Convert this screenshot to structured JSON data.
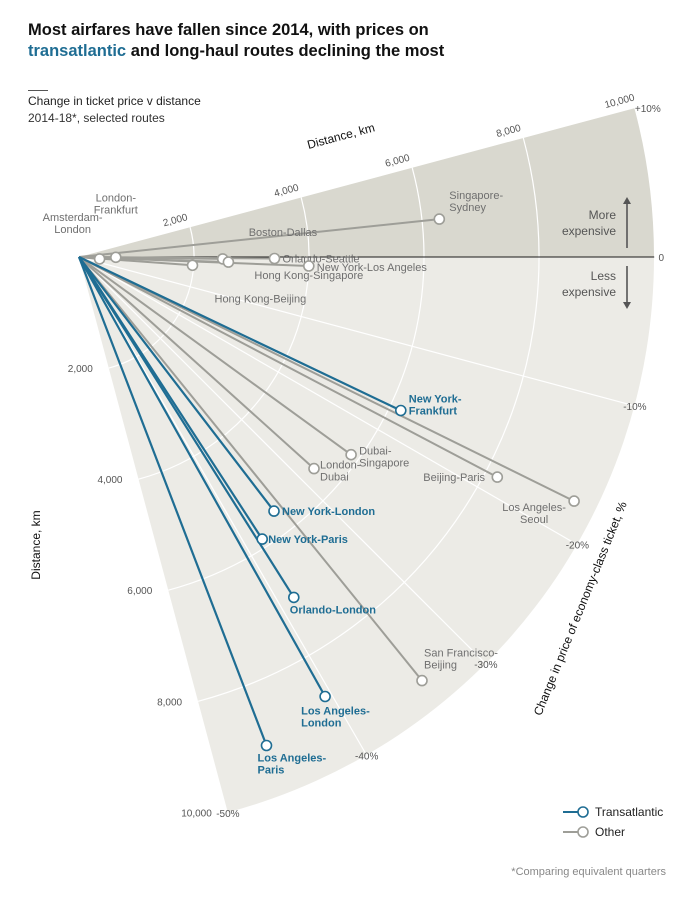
{
  "title": {
    "line1": "Most airfares have fallen since 2014, with prices on",
    "highlight": "transatlantic",
    "line2_rest": " and long-haul routes declining the most"
  },
  "subtitle": {
    "line1": "Change in ticket price v distance",
    "line2": "2014-18*, selected routes"
  },
  "footnote": "*Comparing equivalent quarters",
  "colors": {
    "transatlantic": "#1f6d93",
    "other": "#9e9e98",
    "above_fill": "#d9d8cf",
    "below_fill": "#ecebe6",
    "grid": "#ffffff",
    "zero_line": "#1a1a1a"
  },
  "directions": {
    "up": [
      "More",
      "expensive"
    ],
    "down": [
      "Less",
      "expensive"
    ]
  },
  "chart_data": {
    "type": "scatter",
    "subtype": "radial",
    "xlabel": "Distance, km",
    "ylabel": "Distance, km",
    "angle_label": "Change in price of economy-class ticket, %",
    "radius_range": [
      0,
      10000
    ],
    "radius_ticks": [
      2000,
      4000,
      6000,
      8000,
      10000
    ],
    "radius_tick_labels": [
      "2,000",
      "4,000",
      "6,000",
      "8,000",
      "10,000"
    ],
    "angle_range": [
      -50,
      10
    ],
    "angle_ticks": [
      10,
      0,
      -10,
      -20,
      -30,
      -40,
      -50
    ],
    "angle_tick_labels": [
      "+10%",
      "0",
      "-10%",
      "-20%",
      "-30%",
      "-40%",
      "-50%"
    ],
    "legend": [
      {
        "name": "Transatlantic",
        "color": "#1f6d93"
      },
      {
        "name": "Other",
        "color": "#9e9e98"
      }
    ],
    "legend_position": "bottom-right",
    "series": [
      {
        "name": "Transatlantic",
        "points": [
          {
            "route": "New York-Frankfurt",
            "label": [
              "New York-",
              "Frankfurt"
            ],
            "distance": 6200,
            "change": -17
          },
          {
            "route": "New York-London",
            "label": [
              "New York-London"
            ],
            "distance": 5570,
            "change": -35
          },
          {
            "route": "New York-Paris",
            "label": [
              "New York-Paris"
            ],
            "distance": 5850,
            "change": -38
          },
          {
            "route": "Orlando-London",
            "label": [
              "Orlando-London"
            ],
            "distance": 7000,
            "change": -38.5
          },
          {
            "route": "Los Angeles-London",
            "label": [
              "Los Angeles-",
              "London"
            ],
            "distance": 8760,
            "change": -40.5
          },
          {
            "route": "Los Angeles-Paris",
            "label": [
              "Los Angeles-",
              "Paris"
            ],
            "distance": 9100,
            "change": -46
          }
        ]
      },
      {
        "name": "Other",
        "points": [
          {
            "route": "Singapore-Sydney",
            "label": [
              "Singapore-",
              "Sydney"
            ],
            "distance": 6300,
            "change": 4
          },
          {
            "route": "Boston-Dallas",
            "label": [
              "Boston-Dallas"
            ],
            "distance": 2500,
            "change": -0.5
          },
          {
            "route": "Orlando-Seattle",
            "label": [
              "Orlando-Seattle"
            ],
            "distance": 3400,
            "change": -0.3
          },
          {
            "route": "New York-Los Angeles",
            "label": [
              "New York-Los Angeles"
            ],
            "distance": 4000,
            "change": -1.5
          },
          {
            "route": "Hong Kong-Singapore",
            "label": [
              "Hong Kong-Singapore"
            ],
            "distance": 2600,
            "change": -1.3
          },
          {
            "route": "Hong Kong-Beijing",
            "label": [
              "Hong Kong-Beijing"
            ],
            "distance": 1980,
            "change": -2.8
          },
          {
            "route": "London-Frankfurt",
            "label": [
              "London-",
              "Frankfurt"
            ],
            "distance": 640,
            "change": -0.3
          },
          {
            "route": "Amsterdam-London",
            "label": [
              "Amsterdam-",
              "London"
            ],
            "distance": 360,
            "change": -3.5
          },
          {
            "route": "London-Dubai",
            "label": [
              "London-",
              "Dubai"
            ],
            "distance": 5500,
            "change": -28
          },
          {
            "route": "Dubai-Singapore",
            "label": [
              "Dubai-",
              "Singapore"
            ],
            "distance": 5850,
            "change": -24
          },
          {
            "route": "Beijing-Paris",
            "label": [
              "Beijing-Paris"
            ],
            "distance": 8220,
            "change": -18.5
          },
          {
            "route": "Los Angeles-Seoul",
            "label": [
              "Los Angeles-",
              "Seoul"
            ],
            "distance": 9600,
            "change": -17.5
          },
          {
            "route": "San Francisco-Beijing",
            "label": [
              "San Francisco-",
              "Beijing"
            ],
            "distance": 9480,
            "change": -34
          }
        ]
      }
    ]
  }
}
